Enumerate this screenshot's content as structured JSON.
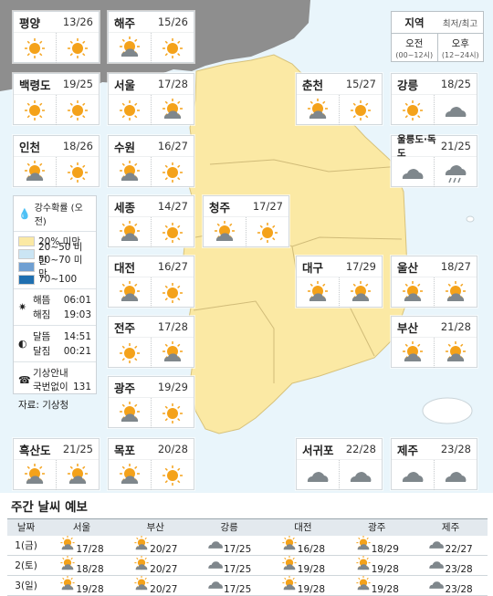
{
  "colors": {
    "sea": "#e9f5fb",
    "land": "#fbe9a4",
    "dprk": "#8e8e8e",
    "sun": "#f4a21a",
    "cloud": "#7f878c"
  },
  "header": {
    "title": "지역",
    "subtitle": "최저/최고",
    "am": "오전",
    "am_sub": "(00~12시)",
    "pm": "오후",
    "pm_sub": "(12~24시)"
  },
  "cities": [
    {
      "name": "평양",
      "temp": "13/26",
      "am": "sun-icon",
      "pm": "sun-icon"
    },
    {
      "name": "해주",
      "temp": "15/26",
      "am": "partly-cloudy-icon",
      "pm": "sun-icon"
    },
    {
      "name": "백령도",
      "temp": "19/25",
      "am": "sun-icon",
      "pm": "sun-icon"
    },
    {
      "name": "서울",
      "temp": "17/28",
      "am": "sun-icon",
      "pm": "partly-cloudy-icon"
    },
    {
      "name": "춘천",
      "temp": "15/27",
      "am": "partly-cloudy-icon",
      "pm": "sun-icon"
    },
    {
      "name": "강릉",
      "temp": "18/25",
      "am": "sun-icon",
      "pm": "cloud-icon"
    },
    {
      "name": "인천",
      "temp": "18/26",
      "am": "partly-cloudy-icon",
      "pm": "sun-icon"
    },
    {
      "name": "수원",
      "temp": "16/27",
      "am": "partly-cloudy-icon",
      "pm": "sun-icon"
    },
    {
      "name": "울릉도·독도",
      "temp": "21/25",
      "am": "cloud-icon",
      "pm": "rain-icon"
    },
    {
      "name": "세종",
      "temp": "14/27",
      "am": "partly-cloudy-icon",
      "pm": "sun-icon"
    },
    {
      "name": "청주",
      "temp": "17/27",
      "am": "partly-cloudy-icon",
      "pm": "sun-icon"
    },
    {
      "name": "대전",
      "temp": "16/27",
      "am": "partly-cloudy-icon",
      "pm": "sun-icon"
    },
    {
      "name": "대구",
      "temp": "17/29",
      "am": "partly-cloudy-icon",
      "pm": "partly-cloudy-icon"
    },
    {
      "name": "울산",
      "temp": "18/27",
      "am": "partly-cloudy-icon",
      "pm": "partly-cloudy-icon"
    },
    {
      "name": "전주",
      "temp": "17/28",
      "am": "sun-icon",
      "pm": "partly-cloudy-icon"
    },
    {
      "name": "부산",
      "temp": "21/28",
      "am": "partly-cloudy-icon",
      "pm": "partly-cloudy-icon"
    },
    {
      "name": "광주",
      "temp": "19/29",
      "am": "partly-cloudy-icon",
      "pm": "sun-icon"
    },
    {
      "name": "흑산도",
      "temp": "21/25",
      "am": "partly-cloudy-icon",
      "pm": "partly-cloudy-icon"
    },
    {
      "name": "목포",
      "temp": "20/28",
      "am": "partly-cloudy-icon",
      "pm": "sun-icon"
    },
    {
      "name": "서귀포",
      "temp": "22/28",
      "am": "cloud-icon",
      "pm": "cloud-icon"
    },
    {
      "name": "제주",
      "temp": "23/28",
      "am": "cloud-icon",
      "pm": "cloud-icon"
    }
  ],
  "legend": {
    "title": "강수확률 (오전)",
    "levels": [
      {
        "label": "20% 미만",
        "color": "#fbe9a4"
      },
      {
        "label": "20~50 미만",
        "color": "#cbe5f4"
      },
      {
        "label": "50~70 미만",
        "color": "#6f9fd2"
      },
      {
        "label": "70~100",
        "color": "#1f6fb0"
      }
    ],
    "sunrise_label": "해뜸",
    "sunrise": "06:01",
    "sunset_label": "해짐",
    "sunset": "19:03",
    "moonrise_label": "달뜸",
    "moonrise": "14:51",
    "moonset_label": "달짐",
    "moonset": "00:21",
    "info_line1": "기상안내",
    "info_line2": "국번없이",
    "info_number": "131",
    "source": "자료: 기상청"
  },
  "weekly": {
    "title": "주간 날씨 예보",
    "columns": [
      "날짜",
      "서울",
      "부산",
      "강릉",
      "대전",
      "광주",
      "제주"
    ],
    "rows": [
      {
        "date": "1(금)",
        "cells": [
          {
            "icon": "partly-cloudy-icon",
            "t": "17/28"
          },
          {
            "icon": "partly-cloudy-icon",
            "t": "20/27"
          },
          {
            "icon": "cloud-icon",
            "t": "17/25"
          },
          {
            "icon": "partly-cloudy-icon",
            "t": "16/28"
          },
          {
            "icon": "partly-cloudy-icon",
            "t": "18/29"
          },
          {
            "icon": "cloud-icon",
            "t": "22/27"
          }
        ]
      },
      {
        "date": "2(토)",
        "cells": [
          {
            "icon": "partly-cloudy-icon",
            "t": "18/28"
          },
          {
            "icon": "partly-cloudy-icon",
            "t": "20/27"
          },
          {
            "icon": "cloud-icon",
            "t": "17/25"
          },
          {
            "icon": "partly-cloudy-icon",
            "t": "19/28"
          },
          {
            "icon": "partly-cloudy-icon",
            "t": "19/28"
          },
          {
            "icon": "cloud-icon",
            "t": "23/28"
          }
        ]
      },
      {
        "date": "3(일)",
        "cells": [
          {
            "icon": "partly-cloudy-icon",
            "t": "19/28"
          },
          {
            "icon": "partly-cloudy-icon",
            "t": "20/27"
          },
          {
            "icon": "cloud-icon",
            "t": "17/25"
          },
          {
            "icon": "partly-cloudy-icon",
            "t": "19/28"
          },
          {
            "icon": "partly-cloudy-icon",
            "t": "19/28"
          },
          {
            "icon": "cloud-icon",
            "t": "23/28"
          }
        ]
      }
    ]
  }
}
